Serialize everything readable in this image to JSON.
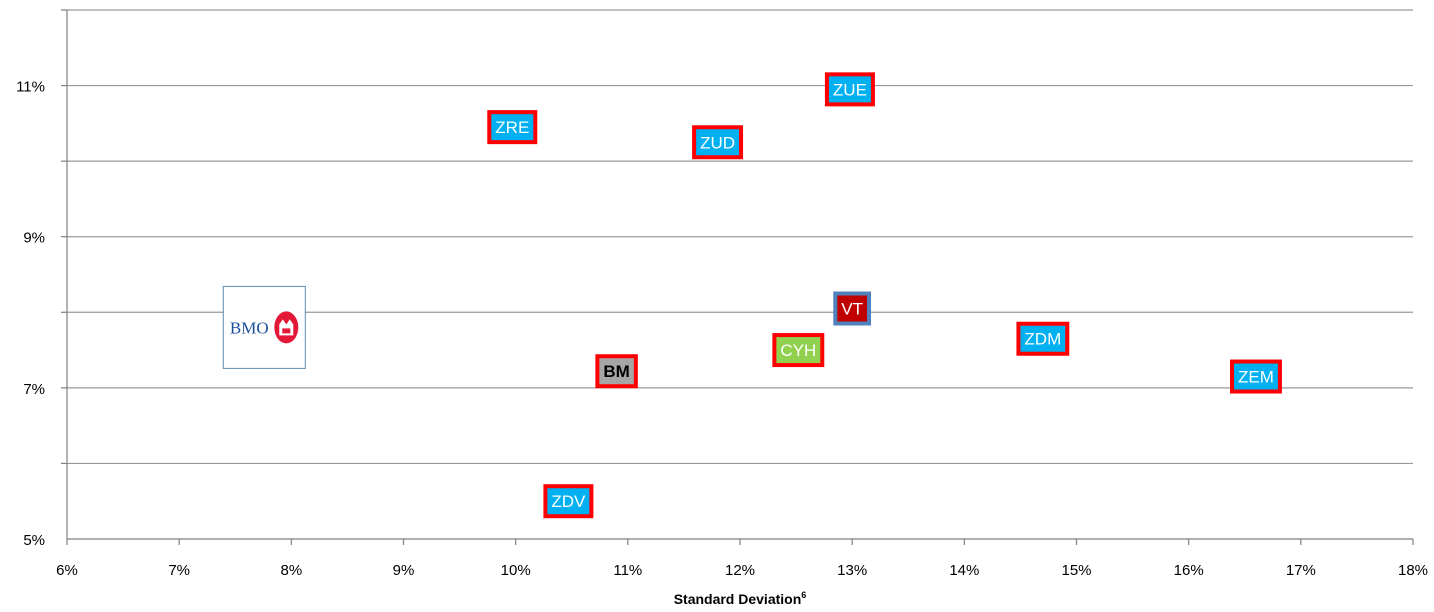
{
  "chart_data": {
    "type": "scatter",
    "title": "",
    "xlabel": "Standard Deviation",
    "xlabel_superscript": "6",
    "ylabel": "",
    "xlim": [
      6,
      18
    ],
    "ylim": [
      5,
      12
    ],
    "x_ticks": [
      6,
      7,
      8,
      9,
      10,
      11,
      12,
      13,
      14,
      15,
      16,
      17,
      18
    ],
    "x_tick_labels": [
      "6%",
      "7%",
      "8%",
      "9%",
      "10%",
      "11%",
      "12%",
      "13%",
      "14%",
      "15%",
      "16%",
      "17%",
      "18%"
    ],
    "y_ticks": [
      5,
      7,
      9,
      11
    ],
    "y_tick_labels": [
      "5%",
      "7%",
      "9%",
      "11%"
    ],
    "gridlines_y": [
      6,
      7,
      8,
      9,
      10,
      11,
      12
    ],
    "grid": true,
    "legend": "none",
    "points": [
      {
        "label": "ZUE",
        "x": 12.98,
        "y": 10.95,
        "fill": "#00b0f0",
        "border": "#ff0000",
        "text_color": "#ffffff",
        "bold": false
      },
      {
        "label": "ZRE",
        "x": 9.97,
        "y": 10.45,
        "fill": "#00b0f0",
        "border": "#ff0000",
        "text_color": "#ffffff",
        "bold": false
      },
      {
        "label": "ZUD",
        "x": 11.8,
        "y": 10.25,
        "fill": "#00b0f0",
        "border": "#ff0000",
        "text_color": "#ffffff",
        "bold": false
      },
      {
        "label": "VT",
        "x": 13.0,
        "y": 8.05,
        "fill": "#c00000",
        "border": "#4f81bd",
        "text_color": "#ffffff",
        "bold": false
      },
      {
        "label": "ZDM",
        "x": 14.7,
        "y": 7.65,
        "fill": "#00b0f0",
        "border": "#ff0000",
        "text_color": "#ffffff",
        "bold": false
      },
      {
        "label": "CYH",
        "x": 12.52,
        "y": 7.5,
        "fill": "#92d050",
        "border": "#ff0000",
        "text_color": "#ffffff",
        "bold": false
      },
      {
        "label": "BM",
        "x": 10.9,
        "y": 7.22,
        "fill": "#a6a6a6",
        "border": "#ff0000",
        "text_color": "#000000",
        "bold": true
      },
      {
        "label": "ZEM",
        "x": 16.6,
        "y": 7.15,
        "fill": "#00b0f0",
        "border": "#ff0000",
        "text_color": "#ffffff",
        "bold": false
      },
      {
        "label": "ZDV",
        "x": 10.47,
        "y": 5.5,
        "fill": "#00b0f0",
        "border": "#ff0000",
        "text_color": "#ffffff",
        "bold": false
      }
    ],
    "logo": {
      "text": "BMO",
      "x": 7.75,
      "y": 7.8,
      "color": "#1b4f9c",
      "roundel_color": "#e31837"
    }
  },
  "colors": {
    "gridline": "#999999",
    "axis": "#808080",
    "tick_text": "#000000"
  }
}
